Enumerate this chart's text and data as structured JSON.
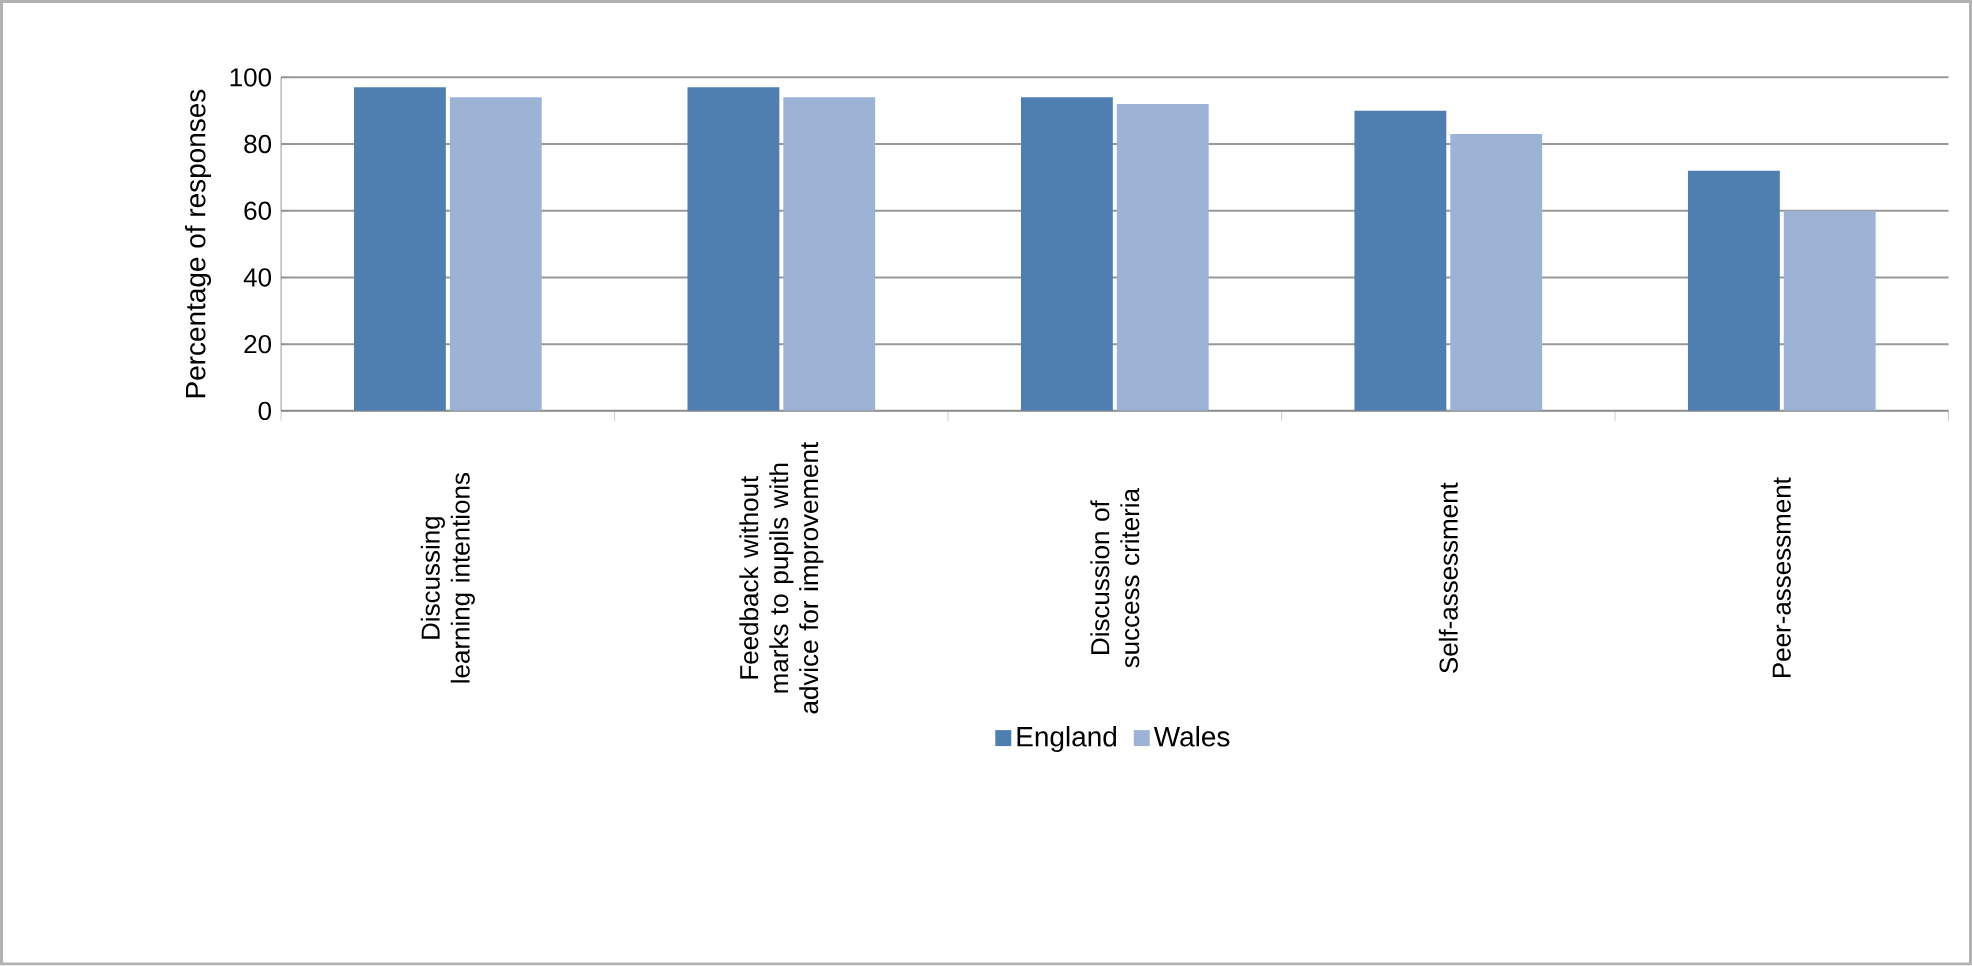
{
  "chart_data": {
    "type": "bar",
    "ylabel": "Percentage of responses",
    "categories": [
      "Discussing learning intentions",
      "Feedback without marks to pupils with advice for improvement",
      "Discussion of success criteria",
      "Self-assessment",
      "Peer-assessment"
    ],
    "series": [
      {
        "name": "England",
        "color": "#4f7eb0",
        "values": [
          97,
          97,
          94,
          90,
          72
        ]
      },
      {
        "name": "Wales",
        "color": "#9cb3d5",
        "values": [
          94,
          94,
          92,
          83,
          60
        ]
      }
    ],
    "ylim": [
      0,
      100
    ],
    "yticks": [
      0,
      20,
      40,
      60,
      80,
      100
    ],
    "grid": "y",
    "legend": "bottom"
  }
}
